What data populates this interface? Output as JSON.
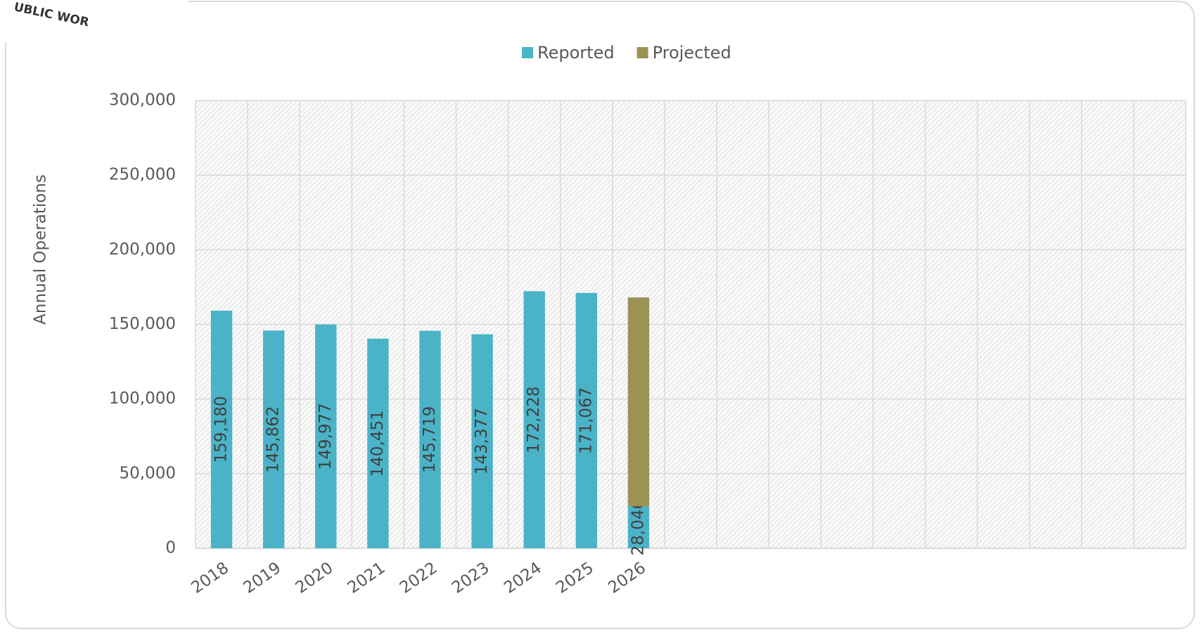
{
  "logo_text": "UBLIC WOR",
  "chart_data": {
    "type": "stacked_bar",
    "y_label": "Annual Operations",
    "categories": [
      "2018",
      "2019",
      "2020",
      "2021",
      "2022",
      "2023",
      "2024",
      "2025",
      "2026",
      null,
      null,
      null,
      null,
      null,
      null,
      null,
      null,
      null,
      null
    ],
    "series": [
      {
        "name": "Reported",
        "color": "#4bb3c8",
        "values": [
          159180,
          145862,
          149977,
          140451,
          145719,
          143377,
          172228,
          171067,
          28046,
          null,
          null,
          null,
          null,
          null,
          null,
          null,
          null,
          null,
          null
        ],
        "value_labels": [
          "159,180",
          "145,862",
          "149,977",
          "140,451",
          "145,719",
          "143,377",
          "172,228",
          "171,067",
          "28,046",
          null,
          null,
          null,
          null,
          null,
          null,
          null,
          null,
          null,
          null
        ]
      },
      {
        "name": "Projected",
        "color": "#9b9255",
        "values": [
          null,
          null,
          null,
          null,
          null,
          null,
          null,
          null,
          140000,
          null,
          null,
          null,
          null,
          null,
          null,
          null,
          null,
          null,
          null
        ]
      }
    ],
    "ylim": [
      0,
      300000
    ],
    "yticks": [
      0,
      {
        "value": 50000,
        "label": "50,000"
      },
      {
        "value": 100000,
        "label": "100,000"
      },
      {
        "value": 150000,
        "label": "150,000"
      },
      {
        "value": 200000,
        "label": "200,000"
      },
      {
        "value": 250000,
        "label": "250,000"
      },
      {
        "value": 300000,
        "label": "300,000"
      }
    ],
    "grid": true,
    "legend": "top"
  }
}
